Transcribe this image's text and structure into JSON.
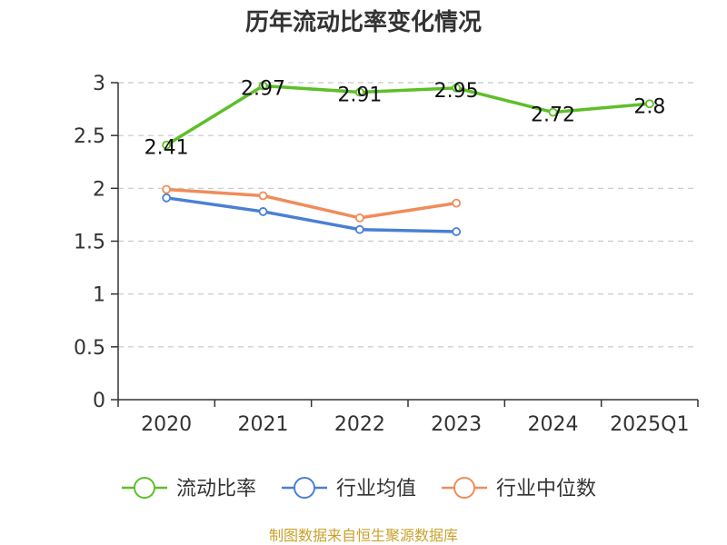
{
  "chart_data": {
    "type": "line",
    "title": "历年流动比率变化情况",
    "categories": [
      "2020",
      "2021",
      "2022",
      "2023",
      "2024",
      "2025Q1"
    ],
    "ylim": [
      0,
      3
    ],
    "yticks": [
      0,
      0.5,
      1,
      1.5,
      2,
      2.5,
      3
    ],
    "ytick_labels": [
      "0",
      "0.5",
      "1",
      "1.5",
      "2",
      "2.5",
      "3"
    ],
    "grid": true,
    "legend_position": "bottom-center",
    "series": [
      {
        "name": "流动比率",
        "color": "#5dbf28",
        "values": [
          2.41,
          2.97,
          2.91,
          2.95,
          2.72,
          2.8
        ],
        "labels": [
          "2.41",
          "2.97",
          "2.91",
          "2.95",
          "2.72",
          "2.8"
        ]
      },
      {
        "name": "行业均值",
        "color": "#4a7fd4",
        "values": [
          1.91,
          1.78,
          1.61,
          1.59,
          null,
          null
        ]
      },
      {
        "name": "行业中位数",
        "color": "#f08c5a",
        "values": [
          1.99,
          1.93,
          1.72,
          1.86,
          null,
          null
        ]
      }
    ],
    "source": "制图数据来自恒生聚源数据库"
  }
}
